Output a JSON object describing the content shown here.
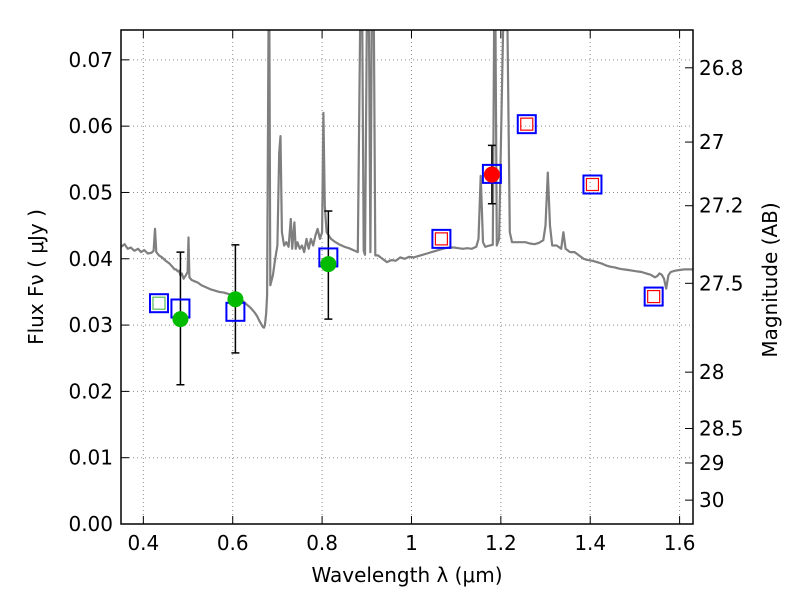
{
  "chart_data": {
    "type": "scatter",
    "xlabel": "Wavelength  λ (μm)",
    "ylabel_left": "Flux  Fν  ( μJy )",
    "ylabel_right": "Magnitude (AB)",
    "xlim": [
      0.35,
      1.63
    ],
    "ylim": [
      0.0,
      0.0745
    ],
    "grid": true,
    "x_ticks": [
      0.4,
      0.6,
      0.8,
      1.0,
      1.2,
      1.4,
      1.6
    ],
    "x_tick_labels": [
      "0.4",
      "0.6",
      "0.8",
      "1",
      "1.2",
      "1.4",
      "1.6"
    ],
    "y_ticks": [
      0.0,
      0.01,
      0.02,
      0.03,
      0.04,
      0.05,
      0.06,
      0.07
    ],
    "y_tick_labels": [
      "0.00",
      "0.01",
      "0.02",
      "0.03",
      "0.04",
      "0.05",
      "0.06",
      "0.07"
    ],
    "right_ticks": [
      {
        "flux": 0.0688,
        "label": "26.8"
      },
      {
        "flux": 0.0576,
        "label": "27"
      },
      {
        "flux": 0.048,
        "label": "27.2"
      },
      {
        "flux": 0.0363,
        "label": "27.5"
      },
      {
        "flux": 0.0229,
        "label": "28"
      },
      {
        "flux": 0.0144,
        "label": "28.5"
      },
      {
        "flux": 0.0092,
        "label": "29"
      },
      {
        "flux": 0.0036,
        "label": "30"
      }
    ],
    "colors": {
      "spectrum": "#7f7f7f",
      "model_box": "#0000ff",
      "detection_green": "#00bb00",
      "detection_red": "#ff0000",
      "inner_green": "#55bb55",
      "inner_red": "#ff0000",
      "errorbar": "#000000",
      "grid": "#8c8c8c"
    },
    "series": [
      {
        "name": "model spectrum",
        "kind": "line",
        "points": [
          [
            0.35,
            0.0418
          ],
          [
            0.358,
            0.0422
          ],
          [
            0.365,
            0.0415
          ],
          [
            0.372,
            0.0417
          ],
          [
            0.38,
            0.0412
          ],
          [
            0.388,
            0.0415
          ],
          [
            0.395,
            0.041
          ],
          [
            0.402,
            0.0413
          ],
          [
            0.41,
            0.0408
          ],
          [
            0.418,
            0.0409
          ],
          [
            0.423,
            0.0412
          ],
          [
            0.426,
            0.0445
          ],
          [
            0.429,
            0.041
          ],
          [
            0.435,
            0.0405
          ],
          [
            0.442,
            0.0402
          ],
          [
            0.45,
            0.0397
          ],
          [
            0.458,
            0.0393
          ],
          [
            0.465,
            0.0388
          ],
          [
            0.47,
            0.0384
          ],
          [
            0.473,
            0.0384
          ],
          [
            0.477,
            0.0381
          ],
          [
            0.48,
            0.0382
          ],
          [
            0.483,
            0.0375
          ],
          [
            0.486,
            0.0378
          ],
          [
            0.49,
            0.037
          ],
          [
            0.495,
            0.0375
          ],
          [
            0.499,
            0.038
          ],
          [
            0.501,
            0.0432
          ],
          [
            0.503,
            0.0372
          ],
          [
            0.508,
            0.0368
          ],
          [
            0.515,
            0.0366
          ],
          [
            0.522,
            0.0364
          ],
          [
            0.53,
            0.036
          ],
          [
            0.54,
            0.0357
          ],
          [
            0.55,
            0.0354
          ],
          [
            0.56,
            0.0352
          ],
          [
            0.57,
            0.035
          ],
          [
            0.58,
            0.0349
          ],
          [
            0.59,
            0.0347
          ],
          [
            0.6,
            0.0345
          ],
          [
            0.61,
            0.0342
          ],
          [
            0.62,
            0.0338
          ],
          [
            0.63,
            0.0332
          ],
          [
            0.64,
            0.0326
          ],
          [
            0.65,
            0.0318
          ],
          [
            0.655,
            0.0313
          ],
          [
            0.66,
            0.0306
          ],
          [
            0.665,
            0.03
          ],
          [
            0.668,
            0.0297
          ],
          [
            0.67,
            0.0296
          ],
          [
            0.672,
            0.03
          ],
          [
            0.675,
            0.0318
          ],
          [
            0.677,
            0.0345
          ],
          [
            0.68,
            0.0745
          ],
          [
            0.682,
            0.0745
          ],
          [
            0.684,
            0.036
          ],
          [
            0.69,
            0.0375
          ],
          [
            0.695,
            0.04
          ],
          [
            0.7,
            0.042
          ],
          [
            0.704,
            0.056
          ],
          [
            0.707,
            0.0585
          ],
          [
            0.71,
            0.044
          ],
          [
            0.715,
            0.042
          ],
          [
            0.72,
            0.0425
          ],
          [
            0.725,
            0.0418
          ],
          [
            0.73,
            0.046
          ],
          [
            0.733,
            0.0415
          ],
          [
            0.738,
            0.0455
          ],
          [
            0.741,
            0.0415
          ],
          [
            0.745,
            0.0425
          ],
          [
            0.75,
            0.0415
          ],
          [
            0.755,
            0.042
          ],
          [
            0.76,
            0.041
          ],
          [
            0.765,
            0.043
          ],
          [
            0.77,
            0.0415
          ],
          [
            0.775,
            0.043
          ],
          [
            0.78,
            0.042
          ],
          [
            0.785,
            0.0435
          ],
          [
            0.79,
            0.0445
          ],
          [
            0.795,
            0.043
          ],
          [
            0.8,
            0.044
          ],
          [
            0.803,
            0.062
          ],
          [
            0.806,
            0.048
          ],
          [
            0.81,
            0.044
          ],
          [
            0.82,
            0.043
          ],
          [
            0.83,
            0.0425
          ],
          [
            0.84,
            0.0421
          ],
          [
            0.85,
            0.0418
          ],
          [
            0.86,
            0.0416
          ],
          [
            0.87,
            0.0413
          ],
          [
            0.88,
            0.041
          ],
          [
            0.885,
            0.0745
          ],
          [
            0.89,
            0.0745
          ],
          [
            0.893,
            0.0412
          ],
          [
            0.896,
            0.0406
          ],
          [
            0.9,
            0.0745
          ],
          [
            0.905,
            0.0745
          ],
          [
            0.908,
            0.041
          ],
          [
            0.911,
            0.0745
          ],
          [
            0.916,
            0.0745
          ],
          [
            0.919,
            0.0405
          ],
          [
            0.925,
            0.0405
          ],
          [
            0.935,
            0.04
          ],
          [
            0.945,
            0.0395
          ],
          [
            0.955,
            0.0398
          ],
          [
            0.965,
            0.0397
          ],
          [
            0.975,
            0.0402
          ],
          [
            0.985,
            0.04
          ],
          [
            0.995,
            0.0403
          ],
          [
            1.005,
            0.0402
          ],
          [
            1.015,
            0.0404
          ],
          [
            1.025,
            0.0406
          ],
          [
            1.035,
            0.0408
          ],
          [
            1.045,
            0.041
          ],
          [
            1.055,
            0.0412
          ],
          [
            1.065,
            0.0414
          ],
          [
            1.075,
            0.0416
          ],
          [
            1.085,
            0.0417
          ],
          [
            1.095,
            0.0417
          ],
          [
            1.105,
            0.0416
          ],
          [
            1.115,
            0.0415
          ],
          [
            1.125,
            0.0416
          ],
          [
            1.135,
            0.0415
          ],
          [
            1.145,
            0.0418
          ],
          [
            1.15,
            0.043
          ],
          [
            1.155,
            0.0525
          ],
          [
            1.16,
            0.0425
          ],
          [
            1.165,
            0.0418
          ],
          [
            1.175,
            0.042
          ],
          [
            1.182,
            0.0421
          ],
          [
            1.185,
            0.0745
          ],
          [
            1.188,
            0.0745
          ],
          [
            1.191,
            0.042
          ],
          [
            1.196,
            0.043
          ],
          [
            1.205,
            0.0745
          ],
          [
            1.215,
            0.0745
          ],
          [
            1.22,
            0.044
          ],
          [
            1.225,
            0.0425
          ],
          [
            1.235,
            0.0425
          ],
          [
            1.245,
            0.0425
          ],
          [
            1.255,
            0.0425
          ],
          [
            1.265,
            0.0423
          ],
          [
            1.275,
            0.0422
          ],
          [
            1.285,
            0.0424
          ],
          [
            1.295,
            0.0428
          ],
          [
            1.3,
            0.045
          ],
          [
            1.305,
            0.053
          ],
          [
            1.31,
            0.045
          ],
          [
            1.315,
            0.042
          ],
          [
            1.325,
            0.042
          ],
          [
            1.335,
            0.0415
          ],
          [
            1.34,
            0.044
          ],
          [
            1.345,
            0.0415
          ],
          [
            1.355,
            0.041
          ],
          [
            1.365,
            0.041
          ],
          [
            1.375,
            0.0405
          ],
          [
            1.385,
            0.04
          ],
          [
            1.395,
            0.0398
          ],
          [
            1.405,
            0.0397
          ],
          [
            1.415,
            0.0395
          ],
          [
            1.425,
            0.0393
          ],
          [
            1.435,
            0.039
          ],
          [
            1.445,
            0.0388
          ],
          [
            1.455,
            0.0387
          ],
          [
            1.465,
            0.0385
          ],
          [
            1.475,
            0.0384
          ],
          [
            1.485,
            0.0383
          ],
          [
            1.495,
            0.0382
          ],
          [
            1.505,
            0.0381
          ],
          [
            1.515,
            0.038
          ],
          [
            1.525,
            0.0378
          ],
          [
            1.535,
            0.0376
          ],
          [
            1.545,
            0.0372
          ],
          [
            1.55,
            0.0374
          ],
          [
            1.555,
            0.0378
          ],
          [
            1.56,
            0.0376
          ],
          [
            1.565,
            0.037
          ],
          [
            1.57,
            0.0355
          ],
          [
            1.575,
            0.0375
          ],
          [
            1.58,
            0.038
          ],
          [
            1.59,
            0.0382
          ],
          [
            1.6,
            0.0383
          ],
          [
            1.61,
            0.0384
          ],
          [
            1.62,
            0.0384
          ],
          [
            1.63,
            0.0384
          ]
        ]
      },
      {
        "name": "model photometry",
        "kind": "open-square",
        "points": [
          [
            0.435,
            0.0333
          ],
          [
            0.483,
            0.0325
          ],
          [
            0.606,
            0.032
          ],
          [
            0.814,
            0.0402
          ],
          [
            1.067,
            0.043
          ],
          [
            1.18,
            0.0528
          ],
          [
            1.258,
            0.0603
          ],
          [
            1.405,
            0.0512
          ],
          [
            1.542,
            0.0343
          ]
        ]
      },
      {
        "name": "observed detections",
        "kind": "filled-circle",
        "points": [
          {
            "x": 0.483,
            "y": 0.0309,
            "err": [
              0.021,
              0.041
            ],
            "color": "green"
          },
          {
            "x": 0.606,
            "y": 0.0339,
            "err": [
              0.0258,
              0.0421
            ],
            "color": "green"
          },
          {
            "x": 0.814,
            "y": 0.0392,
            "err": [
              0.0309,
              0.0472
            ],
            "color": "green"
          },
          {
            "x": 1.18,
            "y": 0.0527,
            "err": [
              0.0483,
              0.0571
            ],
            "color": "red"
          }
        ]
      },
      {
        "name": "small inner squares",
        "kind": "small-square",
        "points": [
          {
            "x": 0.435,
            "y": 0.0333,
            "color": "green"
          },
          {
            "x": 1.067,
            "y": 0.043,
            "color": "red"
          },
          {
            "x": 1.258,
            "y": 0.0603,
            "color": "red"
          },
          {
            "x": 1.405,
            "y": 0.0512,
            "color": "red"
          },
          {
            "x": 1.542,
            "y": 0.0343,
            "color": "red"
          }
        ]
      }
    ]
  }
}
